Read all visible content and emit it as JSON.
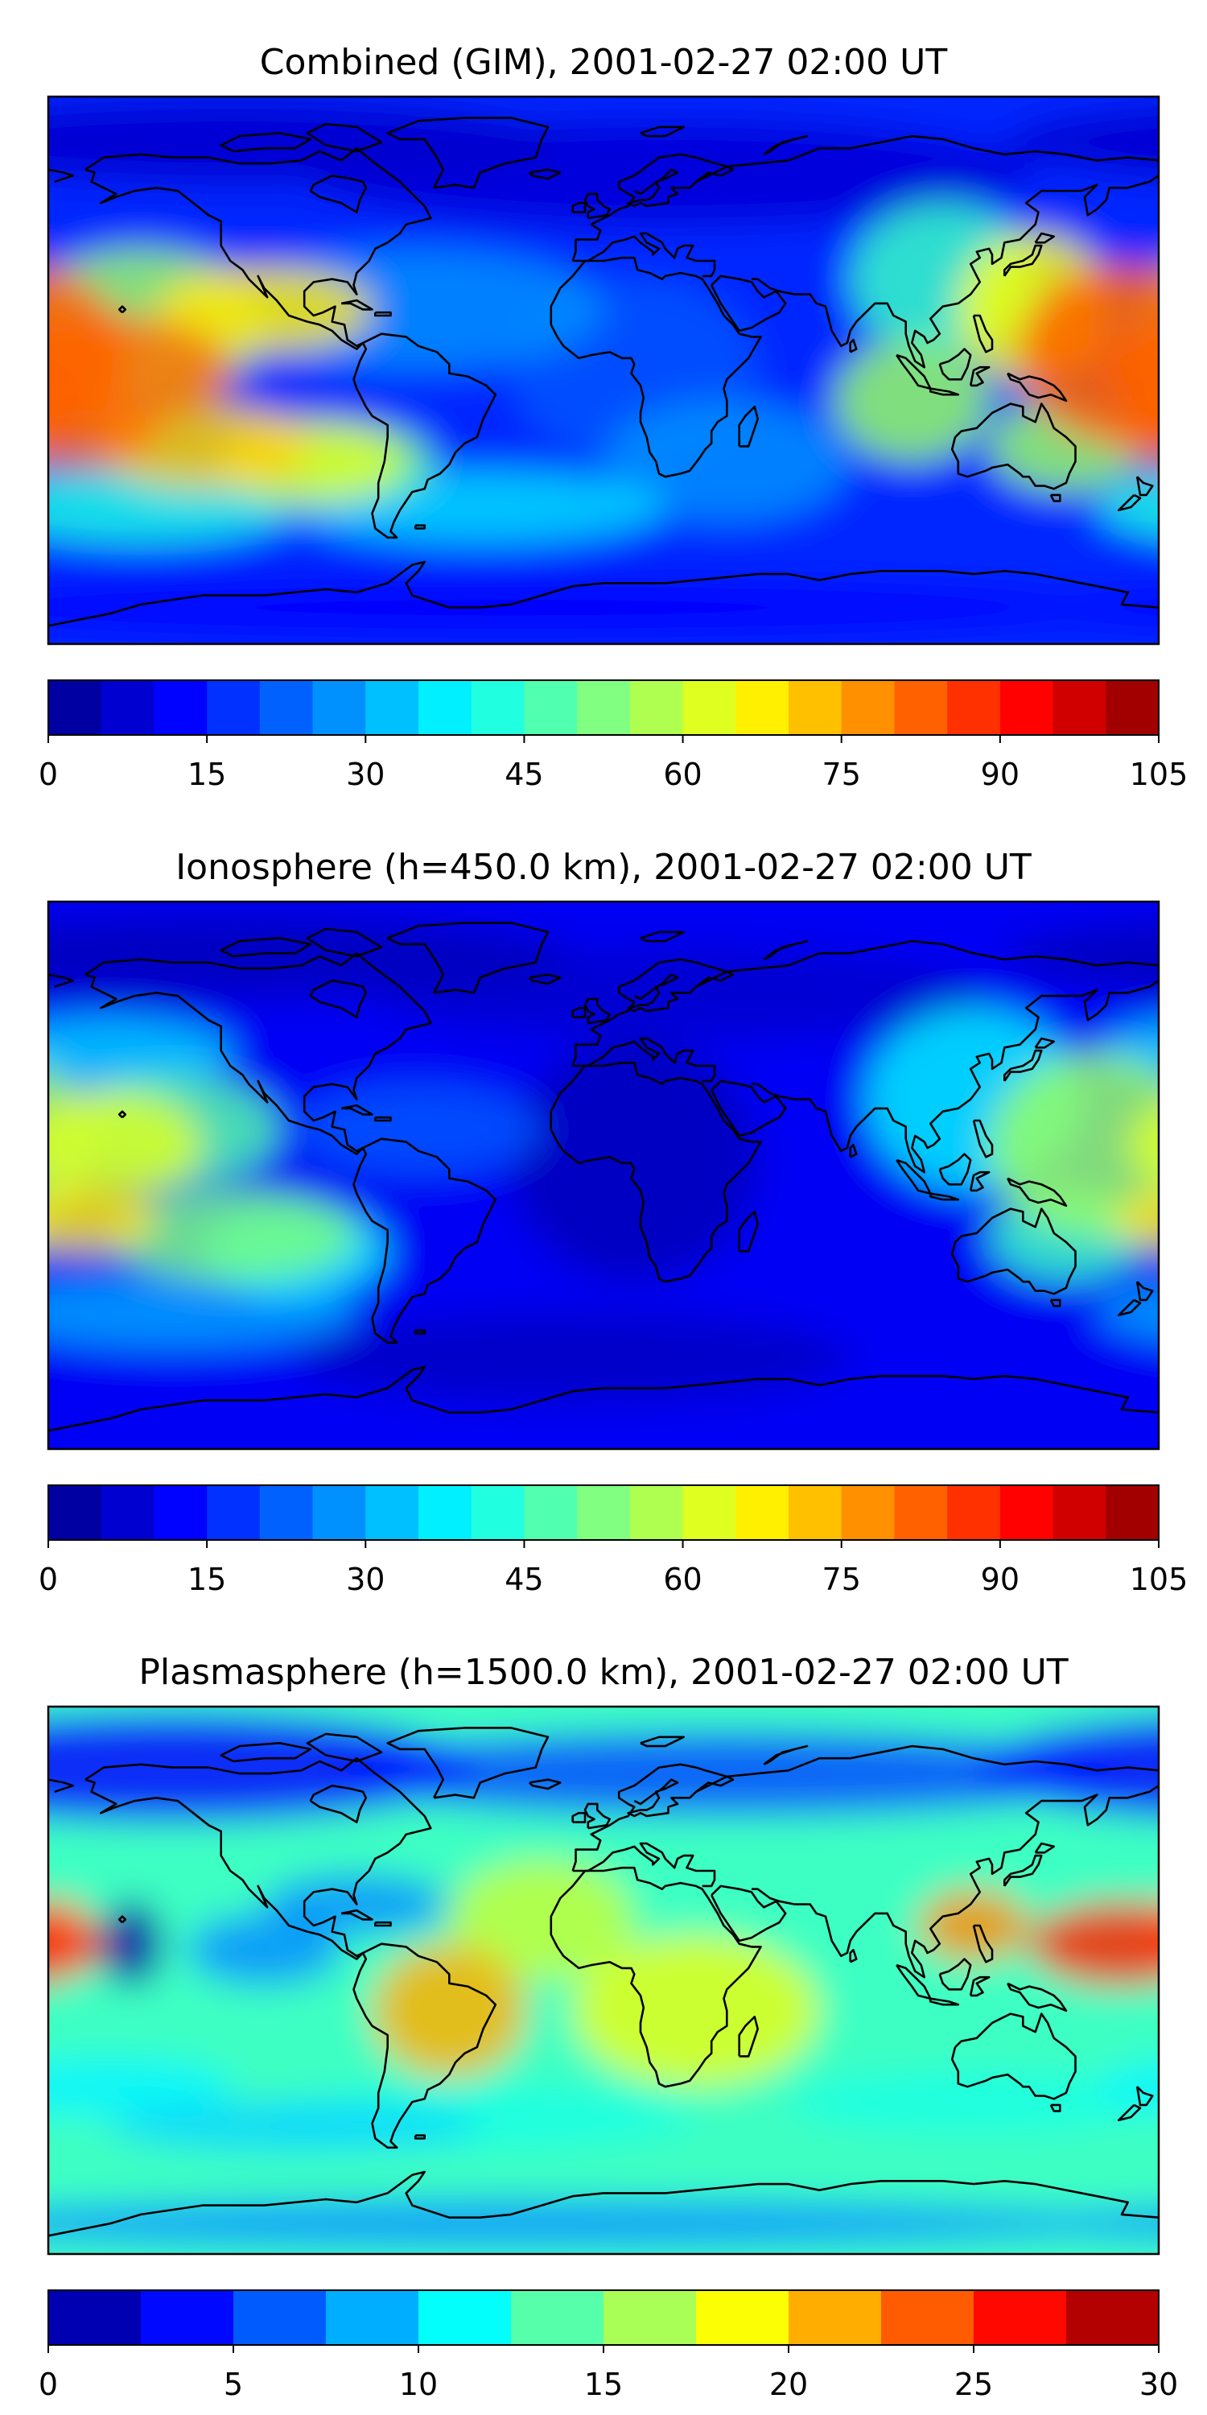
{
  "panels": [
    {
      "title": "Combined (GIM), 2001-02-27 02:00 UT",
      "field": "combined",
      "colorbar": {
        "min": 0,
        "max": 105,
        "step": 5,
        "ticks": [
          "0",
          "15",
          "30",
          "45",
          "60",
          "75",
          "90",
          "105"
        ]
      }
    },
    {
      "title": "Ionosphere  (h=450.0 km), 2001-02-27 02:00 UT",
      "field": "ionosphere",
      "colorbar": {
        "min": 0,
        "max": 105,
        "step": 5,
        "ticks": [
          "0",
          "15",
          "30",
          "45",
          "60",
          "75",
          "90",
          "105"
        ]
      }
    },
    {
      "title": "Plasmasphere (h=1500.0 km), 2001-02-27 02:00 UT",
      "field": "plasmasphere",
      "colorbar": {
        "min": 0,
        "max": 30,
        "step": 2.5,
        "ticks": [
          "0",
          "5",
          "10",
          "15",
          "20",
          "25",
          "30"
        ]
      }
    }
  ],
  "colors": {
    "colormap": "jet",
    "coastline": "#000000",
    "frame": "#000000",
    "text": "#000000"
  }
}
